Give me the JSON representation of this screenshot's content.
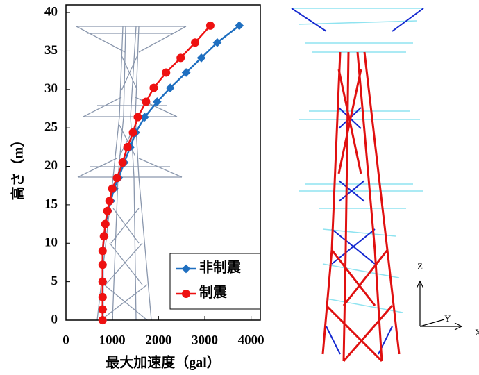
{
  "chart_data": {
    "type": "line",
    "x_label": "最大加速度（gal）",
    "y_label": "高さ（m）",
    "y": [
      38.3,
      36.1,
      34.1,
      32.2,
      30.2,
      28.4,
      26.4,
      24.4,
      22.5,
      20.5,
      18.5,
      17.1,
      15.5,
      14.2,
      12.5,
      10.9,
      9.0,
      7.2,
      5.0,
      3.0,
      1.4,
      0
    ],
    "series": [
      {
        "name": "非制震",
        "color": "#1f6fc0",
        "marker": "diamond",
        "values": [
          3746,
          3269,
          2925,
          2597,
          2254,
          1970,
          1701,
          1507,
          1390,
          1260,
          1140,
          1040,
          970,
          910,
          860,
          825,
          795,
          795,
          795,
          795,
          795,
          795
        ]
      },
      {
        "name": "制震",
        "color": "#ee1111",
        "marker": "circle",
        "values": [
          3119,
          2791,
          2478,
          2164,
          1896,
          1731,
          1552,
          1448,
          1328,
          1224,
          1104,
          1000,
          940,
          896,
          851,
          821,
          791,
          791,
          791,
          791,
          791,
          791
        ]
      }
    ],
    "xlim": [
      0,
      4200
    ],
    "xticks": [
      0,
      1000,
      2000,
      3000,
      4000
    ],
    "ylim": [
      0,
      41
    ],
    "yticks": [
      0,
      5,
      10,
      15,
      20,
      25,
      30,
      35,
      40
    ],
    "legend": "lower right"
  },
  "model_axes": {
    "z": "Z",
    "y": "Y",
    "x": "X"
  }
}
